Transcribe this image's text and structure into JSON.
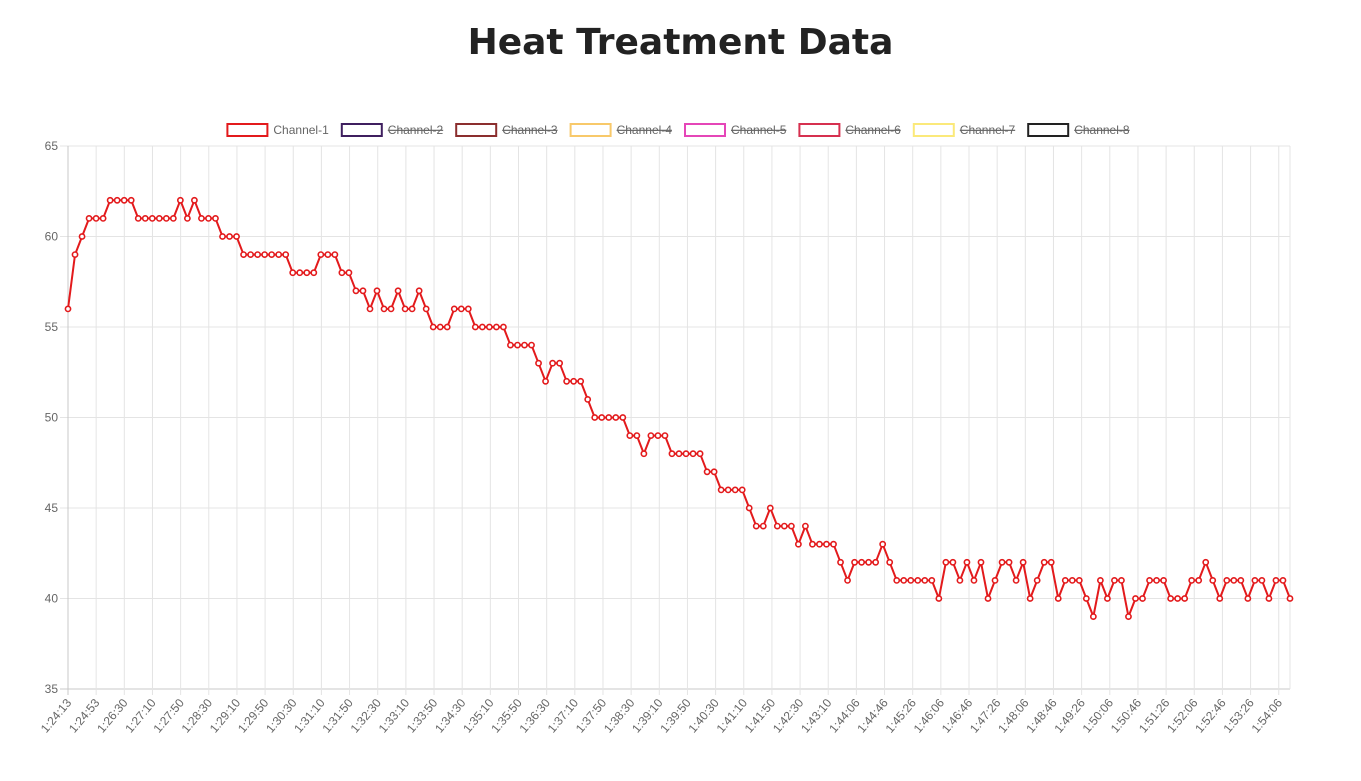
{
  "chart_data": {
    "type": "line",
    "title": "Heat Treatment Data",
    "xlabel": "",
    "ylabel": "",
    "ylim": [
      35,
      65
    ],
    "yticks": [
      35,
      40,
      45,
      50,
      55,
      60,
      65
    ],
    "grid": true,
    "legend_position": "top",
    "x_tick_labels": [
      "1:24:13",
      "1:24:53",
      "1:26:30",
      "1:27:10",
      "1:27:50",
      "1:28:30",
      "1:29:10",
      "1:29:50",
      "1:30:30",
      "1:31:10",
      "1:31:50",
      "1:32:30",
      "1:33:10",
      "1:33:50",
      "1:34:30",
      "1:35:10",
      "1:35:50",
      "1:36:30",
      "1:37:10",
      "1:37:50",
      "1:38:30",
      "1:39:10",
      "1:39:50",
      "1:40:30",
      "1:41:10",
      "1:41:50",
      "1:42:30",
      "1:43:10",
      "1:44:06",
      "1:44:46",
      "1:45:26",
      "1:46:06",
      "1:46:46",
      "1:47:26",
      "1:48:06",
      "1:48:46",
      "1:49:26",
      "1:50:06",
      "1:50:46",
      "1:51:26",
      "1:52:06",
      "1:52:46",
      "1:53:26",
      "1:54:06"
    ],
    "series": [
      {
        "name": "Channel-1",
        "color": "#e31a1c",
        "hidden": false,
        "values": [
          56,
          59,
          60,
          61,
          61,
          61,
          62,
          62,
          62,
          62,
          61,
          61,
          61,
          61,
          61,
          61,
          62,
          61,
          62,
          61,
          61,
          61,
          60,
          60,
          60,
          59,
          59,
          59,
          59,
          59,
          59,
          59,
          58,
          58,
          58,
          58,
          59,
          59,
          59,
          58,
          58,
          57,
          57,
          56,
          57,
          56,
          56,
          57,
          56,
          56,
          57,
          56,
          55,
          55,
          55,
          56,
          56,
          56,
          55,
          55,
          55,
          55,
          55,
          54,
          54,
          54,
          54,
          53,
          52,
          53,
          53,
          52,
          52,
          52,
          51,
          50,
          50,
          50,
          50,
          50,
          49,
          49,
          48,
          49,
          49,
          49,
          48,
          48,
          48,
          48,
          48,
          47,
          47,
          46,
          46,
          46,
          46,
          45,
          44,
          44,
          45,
          44,
          44,
          44,
          43,
          44,
          43,
          43,
          43,
          43,
          42,
          41,
          42,
          42,
          42,
          42,
          43,
          42,
          41,
          41,
          41,
          41,
          41,
          41,
          40,
          42,
          42,
          41,
          42,
          41,
          42,
          40,
          41,
          42,
          42,
          41,
          42,
          40,
          41,
          42,
          42,
          40,
          41,
          41,
          41,
          40,
          39,
          41,
          40,
          41,
          41,
          39,
          40,
          40,
          41,
          41,
          41,
          40,
          40,
          40,
          41,
          41,
          42,
          41,
          40,
          41,
          41,
          41,
          40,
          41,
          41,
          40,
          41,
          41,
          40
        ]
      },
      {
        "name": "Channel-2",
        "color": "#3f1f5f",
        "hidden": true,
        "values": []
      },
      {
        "name": "Channel-3",
        "color": "#8b2e2e",
        "hidden": true,
        "values": []
      },
      {
        "name": "Channel-4",
        "color": "#f8c96a",
        "hidden": true,
        "values": []
      },
      {
        "name": "Channel-5",
        "color": "#e546b8",
        "hidden": true,
        "values": []
      },
      {
        "name": "Channel-6",
        "color": "#d6304f",
        "hidden": true,
        "values": []
      },
      {
        "name": "Channel-7",
        "color": "#fbe97a",
        "hidden": true,
        "values": []
      },
      {
        "name": "Channel-8",
        "color": "#222222",
        "hidden": true,
        "values": []
      }
    ]
  }
}
